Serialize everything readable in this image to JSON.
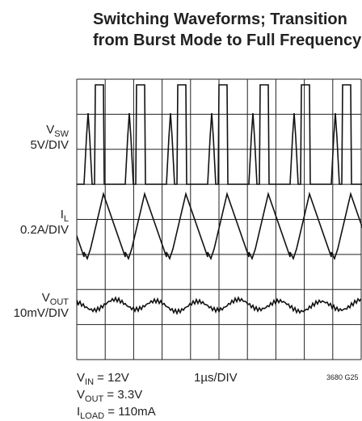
{
  "title": {
    "line1": "Switching Waveforms; Transition",
    "line2": "from Burst Mode to Full Frequency"
  },
  "channels": [
    {
      "name": {
        "main": "V",
        "sub": "SW"
      },
      "scale": "5V/DIV"
    },
    {
      "name": {
        "main": "I",
        "sub": "L"
      },
      "scale": "0.2A/DIV"
    },
    {
      "name": {
        "main": "V",
        "sub": "OUT"
      },
      "scale": "10mV/DIV"
    }
  ],
  "conditions": [
    {
      "main": "V",
      "sub": "IN",
      "rest": " = 12V"
    },
    {
      "main": "V",
      "sub": "OUT",
      "rest": " = 3.3V"
    },
    {
      "main": "I",
      "sub": "LOAD",
      "rest": " = 110mA"
    }
  ],
  "timebase": "1µs/DIV",
  "figure_id": "3680 G25"
}
